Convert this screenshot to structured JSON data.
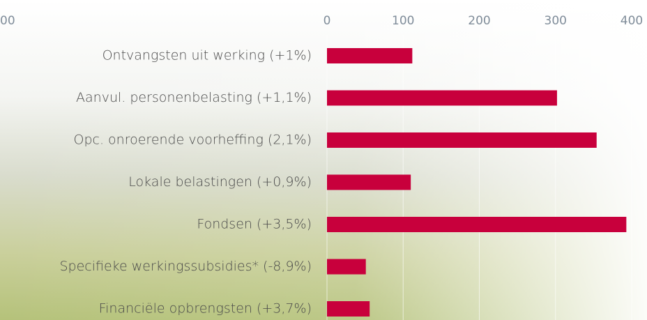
{
  "fragment_text": "00",
  "chart_data": {
    "type": "bar",
    "orientation": "horizontal",
    "categories": [
      "Ontvangsten uit werking (+1%)",
      "Aanvul. personenbelasting (+1,1%)",
      "Opc. onroerende voorheffing (2,1%)",
      "Lokale belastingen (+0,9%)",
      "Fondsen (+3,5%)",
      "Specifieke werkingssubsidies* (-8,9%)",
      "Financiële opbrengsten (+3,7%)"
    ],
    "values": [
      112,
      302,
      354,
      110,
      393,
      51,
      56
    ],
    "color": "#c8003c",
    "xlim": [
      0,
      400
    ],
    "xticks": [
      0,
      100,
      200,
      300,
      400
    ],
    "grid": true
  }
}
